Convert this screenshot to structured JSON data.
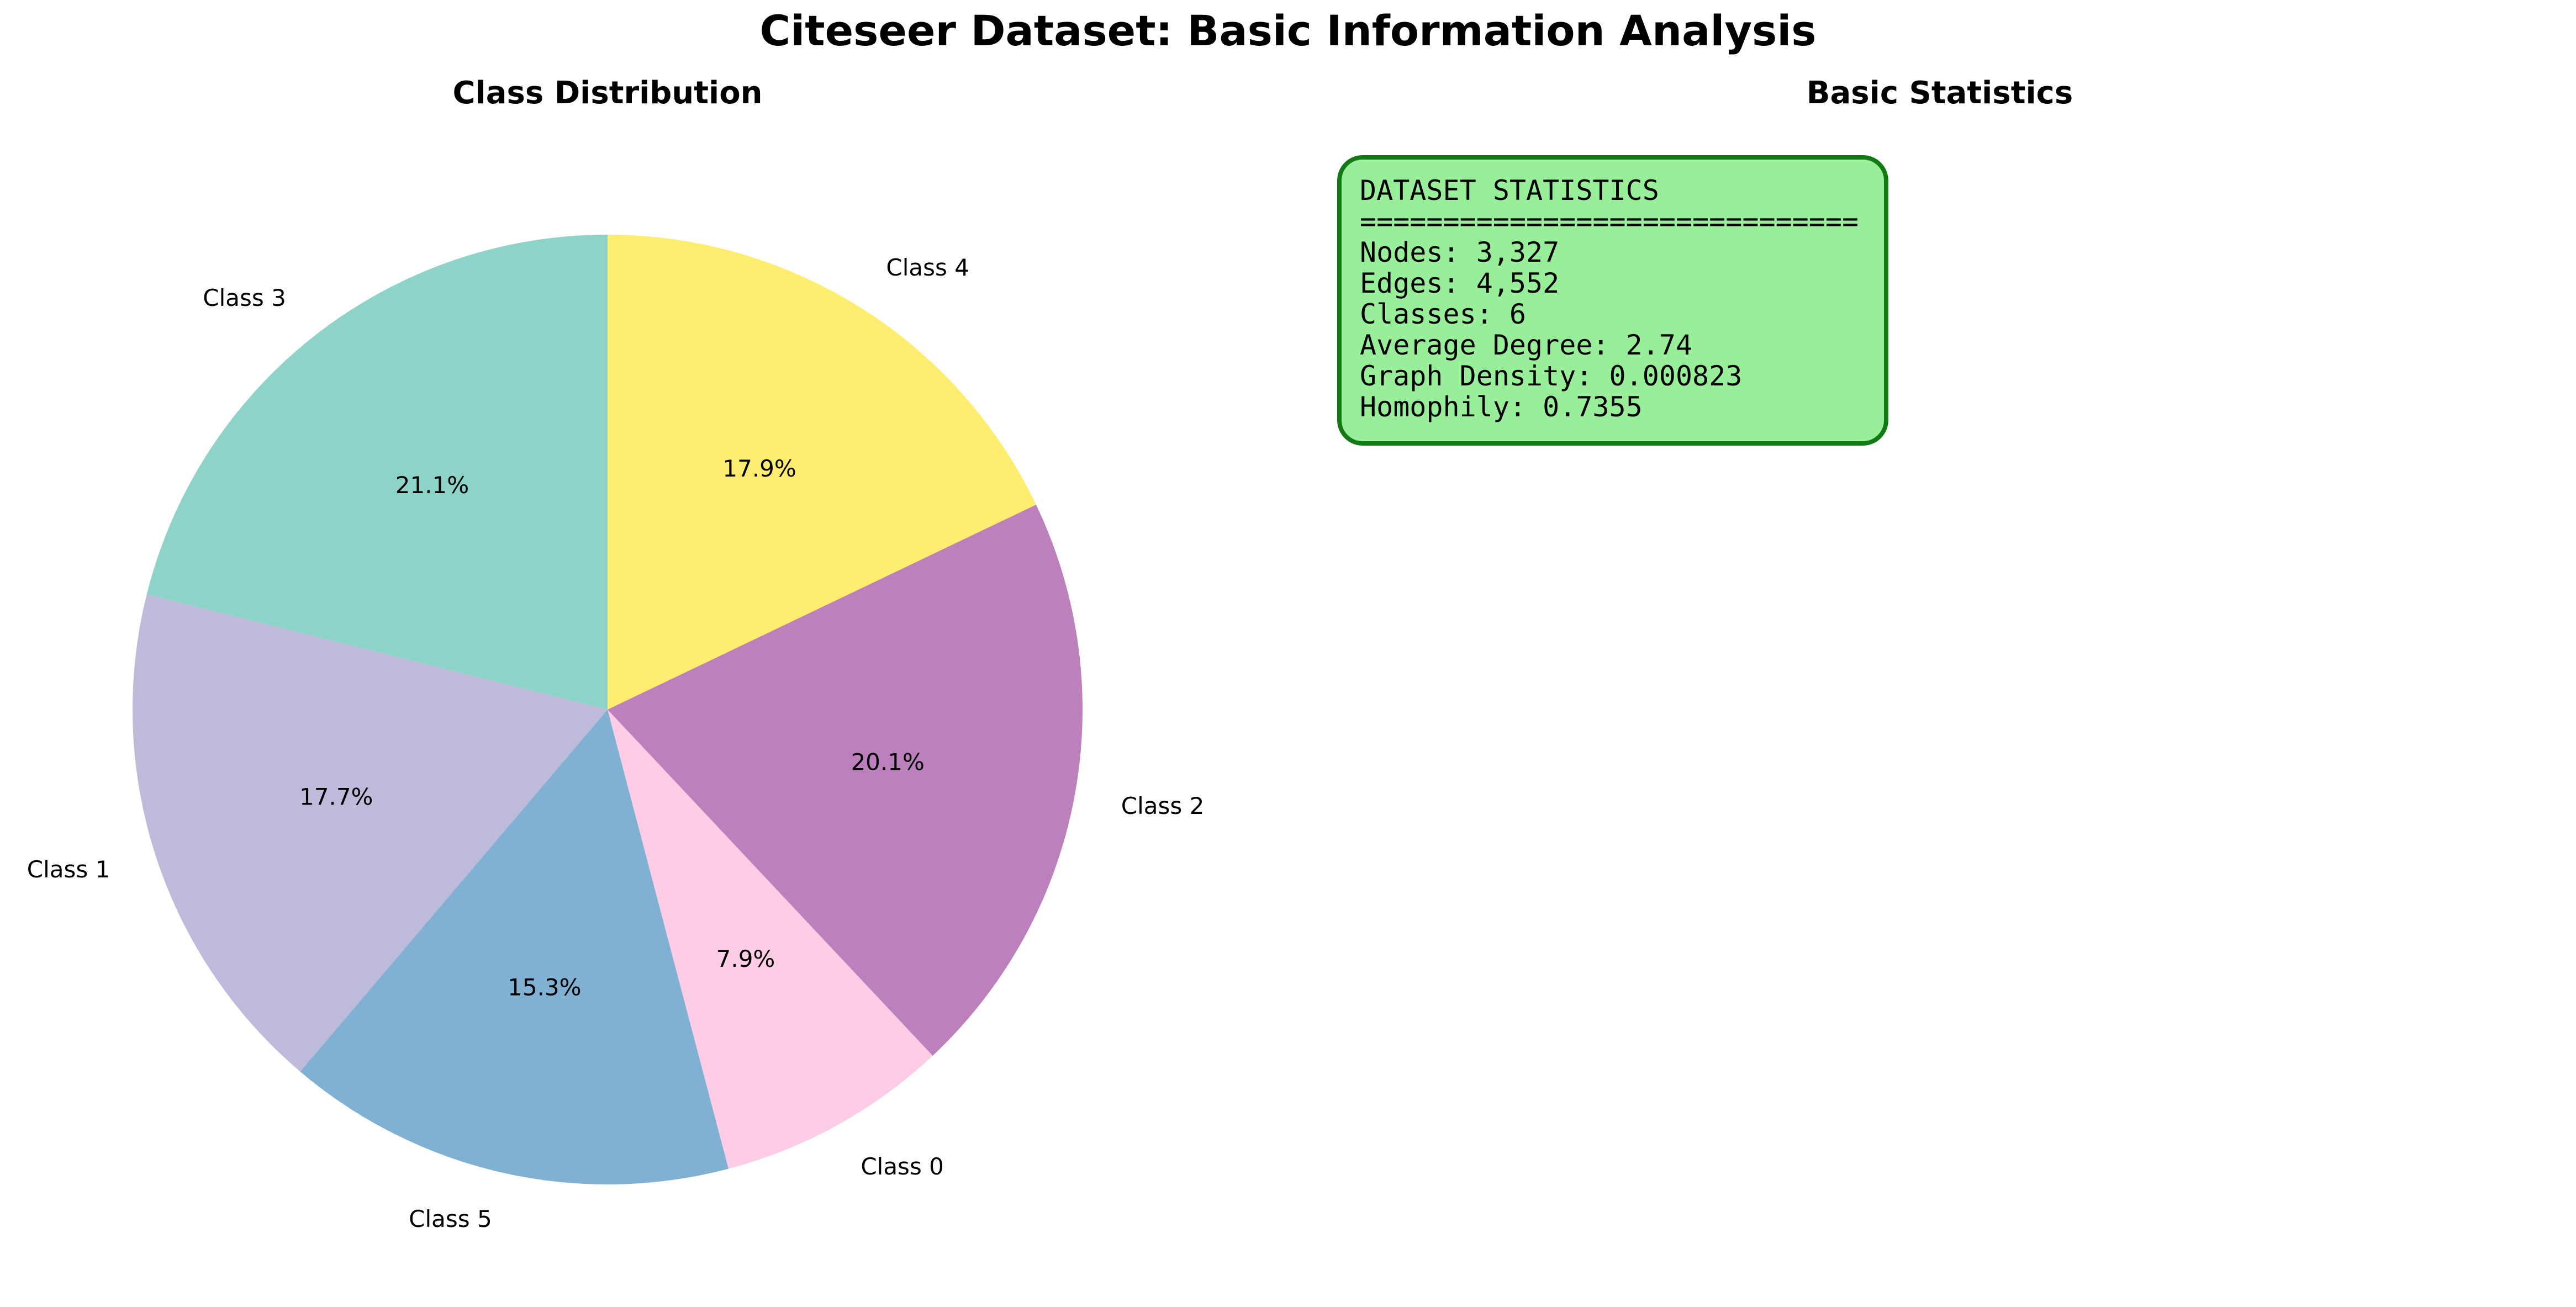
{
  "figure": {
    "title": "Citeseer Dataset: Basic Information Analysis"
  },
  "chart_data": {
    "type": "pie",
    "title": "Class Distribution",
    "start_angle_deg": 90,
    "direction": "counterclockwise",
    "slices": [
      {
        "label": "Class 3",
        "percent": 21.1,
        "pct_label": "21.1%",
        "color": "#8dd3c7"
      },
      {
        "label": "Class 1",
        "percent": 17.7,
        "pct_label": "17.7%",
        "color": "#bebada"
      },
      {
        "label": "Class 5",
        "percent": 15.3,
        "pct_label": "15.3%",
        "color": "#80b1d3"
      },
      {
        "label": "Class 0",
        "percent": 7.9,
        "pct_label": "7.9%",
        "color": "#fccde5"
      },
      {
        "label": "Class 2",
        "percent": 20.1,
        "pct_label": "20.1%",
        "color": "#bc80bd"
      },
      {
        "label": "Class 4",
        "percent": 17.9,
        "pct_label": "17.9%",
        "color": "#ffed6f"
      }
    ]
  },
  "stats_panel": {
    "title": "Basic Statistics",
    "box_fill": "#99ee99",
    "box_edge": "#127a12",
    "lines": [
      "DATASET STATISTICS",
      "==============================",
      "Nodes: 3,327",
      "Edges: 4,552",
      "Classes: 6",
      "Average Degree: 2.74",
      "Graph Density: 0.000823",
      "Homophily: 0.7355"
    ]
  }
}
